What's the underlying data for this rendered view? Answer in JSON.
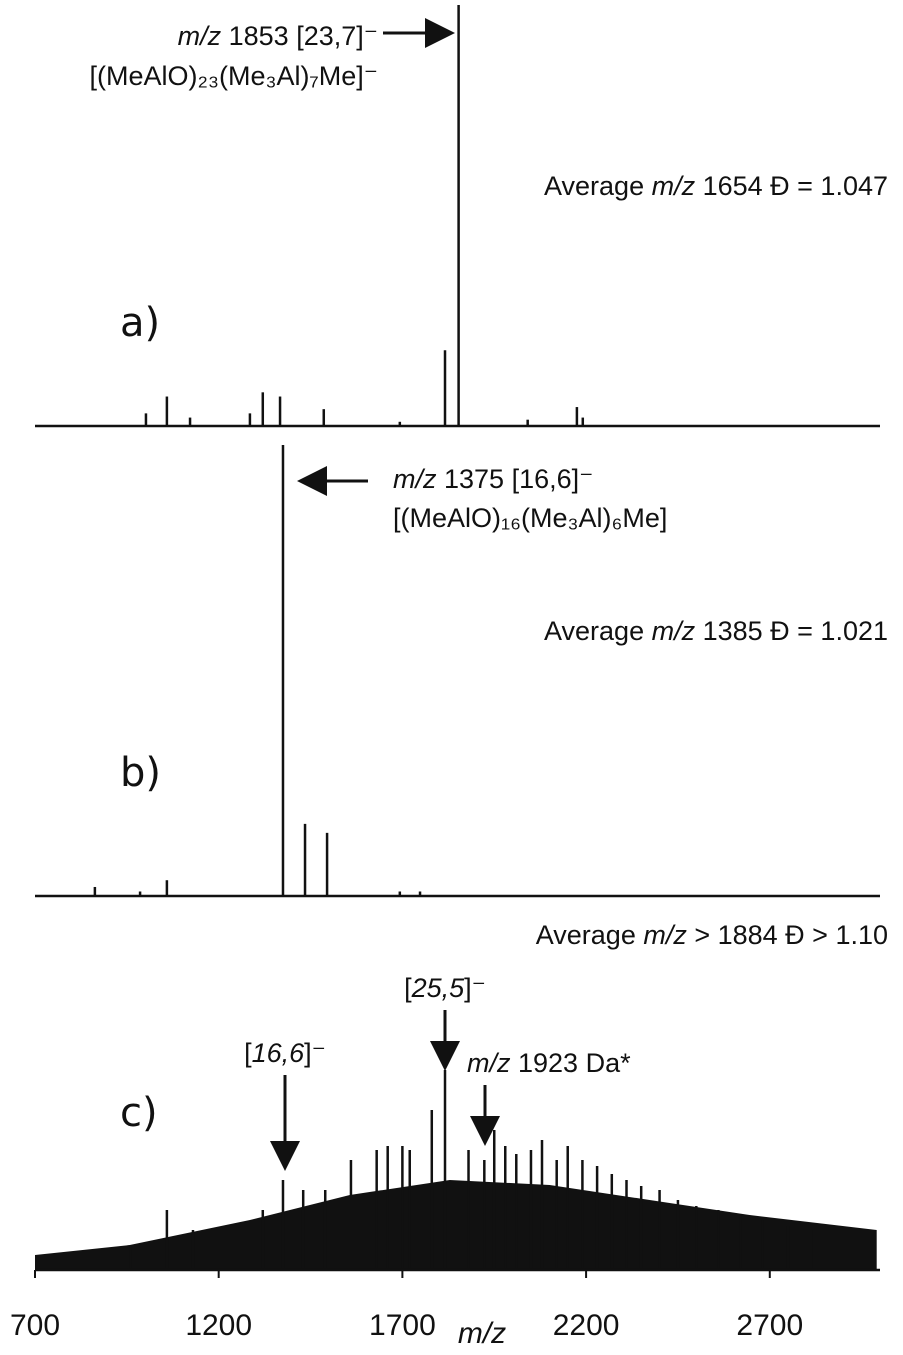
{
  "chart_data": [
    {
      "type": "bar",
      "label": "a)",
      "xlim": [
        700,
        3000
      ],
      "ylim": [
        0,
        100
      ],
      "x": [
        1002,
        1059,
        1122,
        1285,
        1320,
        1367,
        1486,
        1693,
        1816,
        1853,
        2041,
        2175,
        2191
      ],
      "values": [
        3,
        7,
        2,
        3,
        8,
        7,
        4,
        1,
        18,
        100,
        1.5,
        4.5,
        2
      ],
      "annotations": [
        [
          {
            "text": "m/z",
            "italic": true
          },
          {
            "text": " 1853 [23,7]⁻"
          }
        ],
        [
          {
            "text": "[(MeAlO)₂₃(Me₃Al)₇Me]⁻"
          }
        ],
        [
          {
            "text": "Average "
          },
          {
            "text": "m/z",
            "italic": true
          },
          {
            "text": " 1654 Đ = 1.047"
          }
        ]
      ]
    },
    {
      "type": "bar",
      "label": "b)",
      "xlim": [
        700,
        3000
      ],
      "ylim": [
        0,
        100
      ],
      "x": [
        863,
        986,
        1059,
        1375,
        1435,
        1495,
        1693,
        1748
      ],
      "values": [
        2,
        1,
        3.5,
        100,
        16,
        14,
        1,
        1
      ],
      "annotations": [
        [
          {
            "text": "m/z",
            "italic": true
          },
          {
            "text": " 1375 [16,6]⁻"
          }
        ],
        [
          {
            "text": "[(MeAlO)₁₆(Me₃Al)₆Me]"
          }
        ],
        [
          {
            "text": "Average "
          },
          {
            "text": "m/z",
            "italic": true
          },
          {
            "text": " 1385 Đ = 1.021"
          }
        ]
      ]
    },
    {
      "type": "bar",
      "label": "c)",
      "xlim": [
        700,
        3000
      ],
      "ylim": [
        0,
        100
      ],
      "xticks": [
        700,
        1200,
        1700,
        2200,
        2700
      ],
      "xlabel": "m/z",
      "x": [
        960,
        1059,
        1130,
        1320,
        1375,
        1430,
        1490,
        1560,
        1630,
        1660,
        1700,
        1720,
        1780,
        1816,
        1880,
        1923,
        1950,
        1980,
        2010,
        2050,
        2080,
        2120,
        2150,
        2190,
        2230,
        2270,
        2310,
        2350,
        2400,
        2450,
        2500,
        2560,
        2620,
        2680,
        2750,
        2820,
        2900
      ],
      "values": [
        12,
        30,
        20,
        30,
        45,
        40,
        40,
        55,
        60,
        62,
        62,
        60,
        80,
        100,
        60,
        55,
        70,
        62,
        58,
        60,
        65,
        55,
        62,
        55,
        52,
        48,
        45,
        42,
        40,
        35,
        32,
        30,
        28,
        25,
        22,
        20,
        15
      ],
      "envelope_x": [
        700,
        958,
        1285,
        1557,
        1829,
        2101,
        2373,
        2645,
        2991
      ],
      "envelope_values": [
        7.5,
        12.5,
        25,
        37.5,
        45,
        42.5,
        35,
        27.5,
        20
      ],
      "annotations": [
        [
          {
            "text": "Average "
          },
          {
            "text": "m/z",
            "italic": true
          },
          {
            "text": " > 1884 Đ > 1.10"
          }
        ],
        [
          {
            "text": "["
          },
          {
            "text": "25,5",
            "italic": true
          },
          {
            "text": "]⁻"
          }
        ],
        [
          {
            "text": "m/z",
            "italic": true
          },
          {
            "text": " 1923 Da*"
          }
        ],
        [
          {
            "text": "["
          },
          {
            "text": "16,6",
            "italic": true
          },
          {
            "text": "]⁻"
          }
        ]
      ]
    }
  ]
}
